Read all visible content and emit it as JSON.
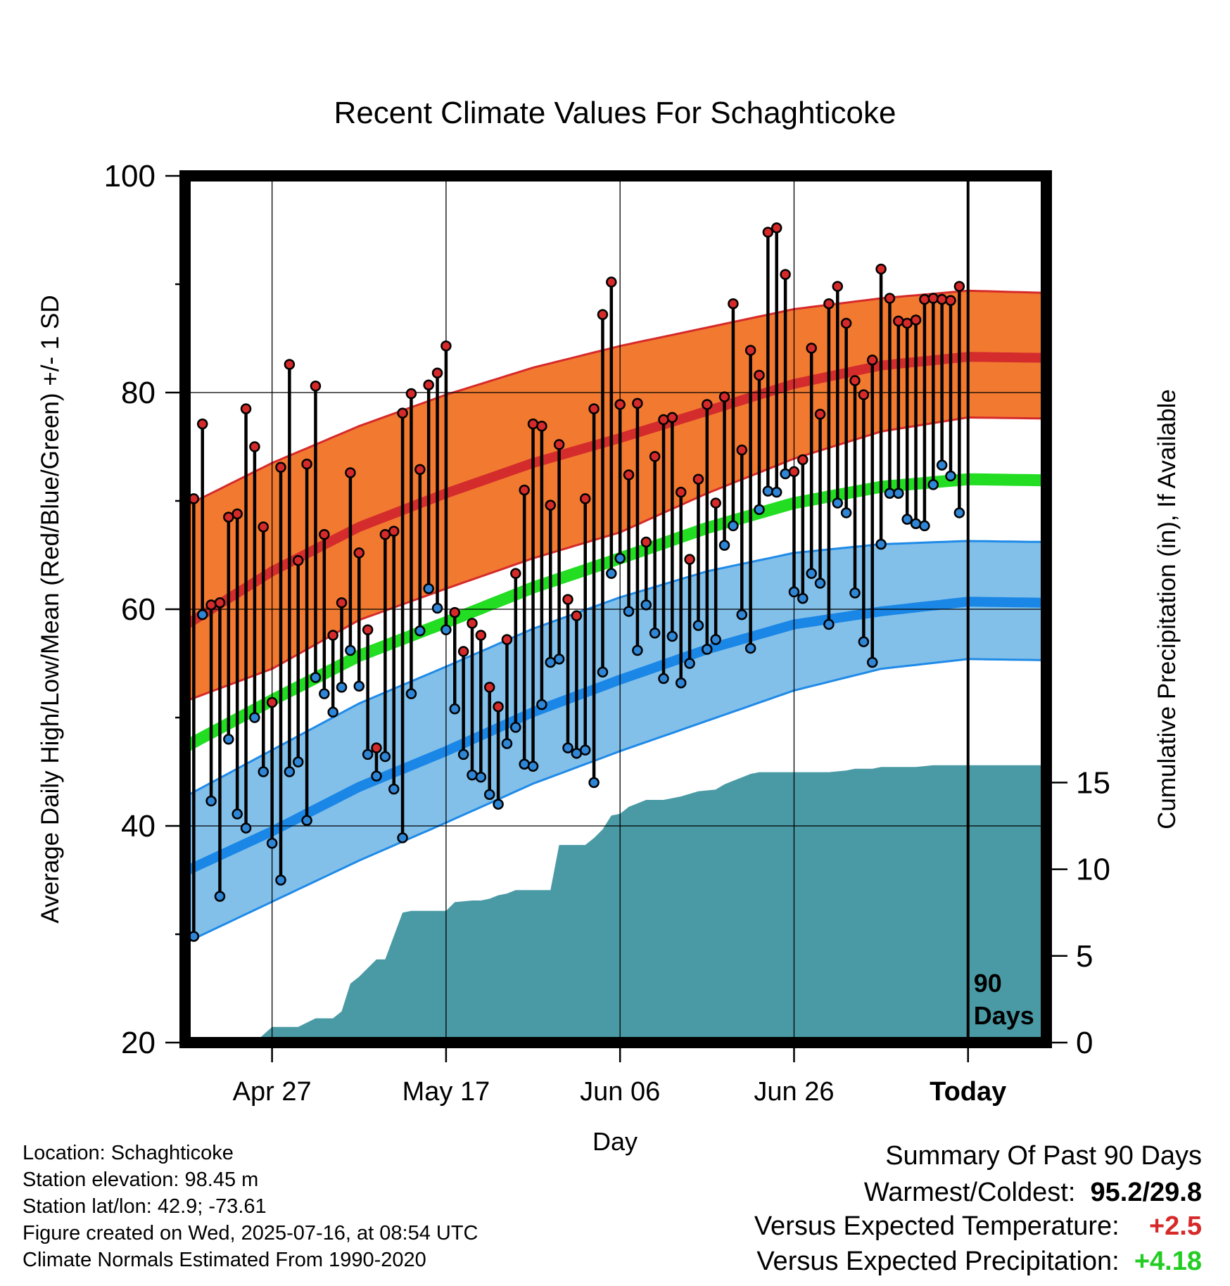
{
  "chart_data": {
    "type": "line",
    "title": "Recent Climate Values For Schaghticoke",
    "xlabel": "Day",
    "ylabel": "Average Daily High/Low/Mean (Red/Blue/Green) +/- 1 SD",
    "y2label": "Cumulative Precipitation (in), If Available",
    "ylim": [
      20,
      100
    ],
    "y2lim": [
      0,
      50
    ],
    "yticks": [
      "20",
      "40",
      "60",
      "80",
      "100"
    ],
    "y2ticks": [
      "0",
      "5",
      "10",
      "15"
    ],
    "xticks": [
      "Apr 27",
      "May 17",
      "Jun 06",
      "Jun 26",
      "Today"
    ],
    "xtick_days": [
      -80,
      -60,
      -40,
      -20,
      0
    ],
    "xlim_days": [
      -90,
      9
    ],
    "today_marker": {
      "label_line1": "90",
      "label_line2": "Days"
    },
    "normals": {
      "day": [
        -90,
        -80,
        -70,
        -60,
        -50,
        -40,
        -30,
        -20,
        -10,
        0,
        9
      ],
      "high_mean": [
        58.5,
        63.5,
        67.6,
        70.7,
        73.5,
        75.8,
        78.3,
        80.8,
        82.5,
        83.3,
        83.2
      ],
      "high_upper": [
        69.5,
        73.5,
        76.9,
        79.8,
        82.3,
        84.3,
        86.0,
        87.7,
        88.7,
        89.4,
        89.2
      ],
      "high_lower": [
        51.5,
        54.5,
        59.0,
        61.9,
        64.7,
        67.1,
        70.7,
        73.9,
        76.4,
        77.7,
        77.6
      ],
      "mean": [
        47.3,
        51.6,
        55.7,
        58.8,
        62.0,
        64.7,
        67.5,
        69.8,
        71.3,
        72.0,
        71.9
      ],
      "low_mean": [
        35.8,
        39.5,
        43.6,
        46.9,
        50.5,
        53.5,
        56.3,
        58.6,
        59.8,
        60.7,
        60.6
      ],
      "low_upper": [
        42.7,
        47.0,
        51.3,
        54.7,
        58.2,
        61.1,
        63.5,
        65.2,
        66.0,
        66.3,
        66.2
      ],
      "low_lower": [
        29.2,
        33.0,
        36.8,
        40.3,
        43.9,
        46.9,
        49.7,
        52.5,
        54.5,
        55.4,
        55.3
      ]
    },
    "series": [
      {
        "name": "High",
        "color": "#d62a2a",
        "values": [
          56.5,
          70.2,
          77.1,
          60.4,
          60.6,
          68.5,
          68.8,
          78.5,
          75.0,
          67.6,
          51.4,
          73.1,
          82.6,
          64.5,
          73.4,
          80.6,
          66.9,
          57.6,
          60.6,
          72.6,
          65.2,
          58.1,
          47.2,
          66.9,
          67.2,
          78.1,
          79.9,
          72.9,
          80.7,
          81.8,
          84.3,
          59.7,
          56.1,
          58.7,
          57.6,
          52.8,
          51.0,
          57.2,
          63.3,
          71.0,
          77.1,
          76.9,
          69.6,
          75.2,
          60.9,
          59.4,
          70.2,
          78.5,
          87.2,
          90.2,
          78.9,
          72.4,
          79.0,
          66.2,
          74.1,
          77.5,
          77.7,
          70.8,
          64.6,
          72.0,
          78.9,
          69.8,
          79.6,
          88.2,
          74.7,
          83.9,
          81.6,
          94.8,
          95.2,
          90.9,
          72.7,
          73.8,
          84.1,
          78.0,
          88.2,
          89.8,
          86.4,
          81.1,
          79.8,
          83.0,
          91.4,
          88.7,
          86.6,
          86.4,
          86.7,
          88.6,
          88.7,
          88.6,
          88.5,
          89.8
        ]
      },
      {
        "name": "Low",
        "color": "#2f86d6",
        "values": [
          36.6,
          29.8,
          59.5,
          42.3,
          33.5,
          48.0,
          41.1,
          39.8,
          50.0,
          45.0,
          38.4,
          35.0,
          45.0,
          45.9,
          40.5,
          53.7,
          52.2,
          50.5,
          52.8,
          56.2,
          52.9,
          46.6,
          44.6,
          46.4,
          43.4,
          38.9,
          52.2,
          58.0,
          61.9,
          60.1,
          58.1,
          50.8,
          46.6,
          44.7,
          44.5,
          42.9,
          42.0,
          47.6,
          49.1,
          45.7,
          45.5,
          51.2,
          55.1,
          55.4,
          47.2,
          46.7,
          47.0,
          44.0,
          54.2,
          63.3,
          64.7,
          59.8,
          56.2,
          60.4,
          57.8,
          53.6,
          57.5,
          53.2,
          55.0,
          58.5,
          56.3,
          57.2,
          65.9,
          67.7,
          59.5,
          56.4,
          69.2,
          70.9,
          70.8,
          72.5,
          61.6,
          61.0,
          63.3,
          62.4,
          58.6,
          69.8,
          68.9,
          61.5,
          57.0,
          55.1,
          66.0,
          70.7,
          70.7,
          68.3,
          67.9,
          67.7,
          71.5,
          73.3,
          72.3,
          68.9
        ]
      }
    ],
    "precipitation": {
      "name": "Cumulative Precipitation",
      "color": "#4a9aa5",
      "day": [
        -90,
        -82,
        -80,
        -77,
        -75,
        -73,
        -72,
        -71,
        -70,
        -68,
        -67,
        -65,
        -64,
        -63,
        -60,
        -59,
        -57,
        -56,
        -55,
        -54,
        -53,
        -52,
        -51,
        -50,
        -49,
        -48,
        -47,
        -45,
        -44,
        -43,
        -42,
        -41,
        -40,
        -39,
        -38,
        -37,
        -35,
        -33,
        -31,
        -29,
        -28,
        -27,
        -26,
        -25,
        -24,
        -22,
        -20,
        -18,
        -16,
        -14,
        -13,
        -11,
        -10,
        -8,
        -7,
        -6,
        -4,
        -2,
        0,
        9
      ],
      "values": [
        0,
        0,
        0.9,
        0.9,
        1.4,
        1.4,
        1.8,
        3.4,
        3.8,
        4.8,
        4.8,
        7.5,
        7.6,
        7.6,
        7.6,
        8.1,
        8.2,
        8.2,
        8.3,
        8.5,
        8.6,
        8.8,
        8.8,
        8.8,
        8.8,
        8.8,
        11.4,
        11.4,
        11.4,
        11.8,
        12.3,
        13.1,
        13.2,
        13.6,
        13.8,
        14.0,
        14.0,
        14.2,
        14.5,
        14.6,
        14.9,
        15.1,
        15.3,
        15.5,
        15.6,
        15.6,
        15.6,
        15.6,
        15.6,
        15.7,
        15.8,
        15.8,
        15.9,
        15.9,
        15.9,
        15.9,
        16.0,
        16.0,
        16.0,
        16.0
      ]
    }
  },
  "x_axis_labels": {
    "tick1": "Apr 27",
    "tick2": "May 17",
    "tick3": "Jun 06",
    "tick4": "Jun 26",
    "tick5": "Today"
  },
  "info": {
    "location": "Location: Schaghticoke",
    "elevation": "Station elevation: 98.45 m",
    "latlon": "Station lat/lon: 42.9; -73.61",
    "created": "Figure created on Wed, 2025-07-16, at 08:54 UTC",
    "normals": "Climate Normals Estimated From 1990-2020"
  },
  "summary": {
    "heading": "Summary Of Past 90 Days",
    "warmest_label": "Warmest/Coldest:",
    "warmest_value": "95.2/29.8",
    "temp_label": "Versus Expected Temperature:",
    "temp_value": "+2.5",
    "temp_color": "#d62a2a",
    "precip_label": "Versus Expected Precipitation:",
    "precip_value": "+4.18",
    "precip_color": "#22cc22"
  }
}
